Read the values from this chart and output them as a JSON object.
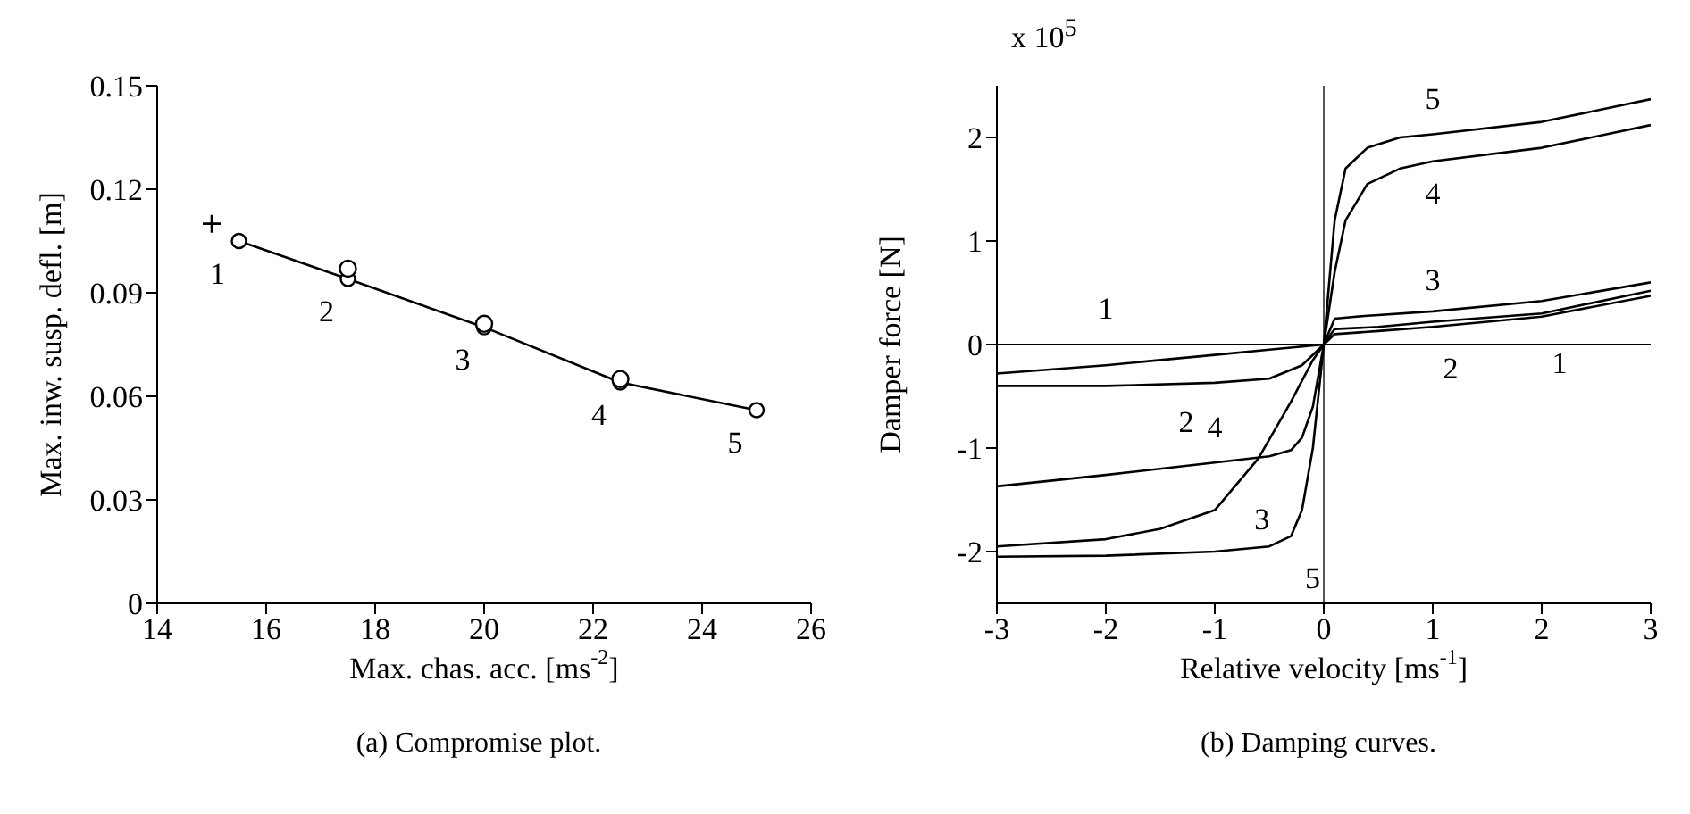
{
  "chart_data": [
    {
      "type": "line",
      "xlabel": "Max. chas. acc. [ms$^{-2}$]",
      "ylabel": "Max. inw. susp. defl. [m]",
      "xlim": [
        14,
        26
      ],
      "xticks": [
        14,
        16,
        18,
        20,
        22,
        24,
        26
      ],
      "ylim": [
        0,
        0.15
      ],
      "yticks": [
        0,
        0.03,
        0.06,
        0.09,
        0.12,
        0.15
      ],
      "grid": false,
      "legend": false,
      "line_style": "solid",
      "series": [
        {
          "type": "line",
          "marker": "circle",
          "color": "#000000",
          "x": [
            15.5,
            17.5,
            20,
            22.5,
            25
          ],
          "values": [
            0.105,
            0.094,
            0.08,
            0.064,
            0.056
          ]
        },
        {
          "type": "scatter",
          "marker": "circle",
          "color": "#000000",
          "x": [
            17.5,
            20,
            22.5
          ],
          "values": [
            0.097,
            0.081,
            0.065
          ]
        },
        {
          "type": "scatter",
          "marker": "cross",
          "color": "#000000",
          "x": [
            15
          ],
          "values": [
            0.11
          ]
        }
      ],
      "annotations": [
        "1",
        "2",
        "3",
        "4",
        "5",
        "(a) Compromise plot."
      ]
    },
    {
      "type": "line",
      "xlabel": "Relative velocity [ms$^{-1}$]",
      "ylabel": "Damper force [N]",
      "title": "x 10$^{5}$",
      "xlim": [
        -3,
        3
      ],
      "xticks": [
        -3,
        -2,
        -1,
        0,
        1,
        2,
        3
      ],
      "ylim": [
        -2.5,
        2.5
      ],
      "yticks": [
        -2,
        -1,
        0,
        1,
        2
      ],
      "grid": false,
      "legend": false,
      "line_style": "solid",
      "marker": "none",
      "ref_lines": [
        {
          "axis": "y",
          "value": 0,
          "color": "#000000"
        },
        {
          "axis": "x",
          "value": 0,
          "color": "#555555"
        }
      ],
      "series": [
        {
          "name": "1",
          "color": "#000000",
          "x": [
            -3,
            -2,
            -1,
            -0.5,
            0,
            0.1,
            0.5,
            1,
            2,
            3
          ],
          "values": [
            -0.28,
            -0.2,
            -0.1,
            -0.05,
            0,
            0.1,
            0.13,
            0.17,
            0.27,
            0.47
          ]
        },
        {
          "name": "2",
          "color": "#000000",
          "x": [
            -3,
            -2,
            -1,
            -0.5,
            -0.2,
            0,
            0.1,
            0.5,
            1,
            2,
            3
          ],
          "values": [
            -0.4,
            -0.4,
            -0.37,
            -0.33,
            -0.2,
            0,
            0.15,
            0.17,
            0.22,
            0.3,
            0.52
          ]
        },
        {
          "name": "3",
          "color": "#000000",
          "x": [
            -3,
            -2,
            -1.5,
            -1,
            -0.6,
            -0.3,
            -0.1,
            0,
            0.1,
            0.3,
            1,
            2,
            3
          ],
          "values": [
            -1.95,
            -1.88,
            -1.78,
            -1.6,
            -1.1,
            -0.55,
            -0.15,
            0,
            0.25,
            0.27,
            0.32,
            0.42,
            0.6
          ]
        },
        {
          "name": "4",
          "color": "#000000",
          "x": [
            -3,
            -2,
            -1,
            -0.5,
            -0.3,
            -0.2,
            -0.1,
            0,
            0.1,
            0.2,
            0.4,
            0.7,
            1,
            2,
            3
          ],
          "values": [
            -1.37,
            -1.26,
            -1.14,
            -1.08,
            -1.02,
            -0.9,
            -0.6,
            0,
            0.7,
            1.2,
            1.55,
            1.7,
            1.77,
            1.9,
            2.12
          ]
        },
        {
          "name": "5",
          "color": "#000000",
          "x": [
            -3,
            -2,
            -1,
            -0.5,
            -0.3,
            -0.2,
            -0.1,
            0,
            0.1,
            0.2,
            0.4,
            0.7,
            1,
            2,
            3
          ],
          "values": [
            -2.05,
            -2.04,
            -2.0,
            -1.95,
            -1.85,
            -1.6,
            -1.0,
            0,
            1.2,
            1.7,
            1.9,
            2.0,
            2.03,
            2.15,
            2.37
          ]
        }
      ],
      "annotations": [
        "(b) Damping curves."
      ]
    }
  ]
}
